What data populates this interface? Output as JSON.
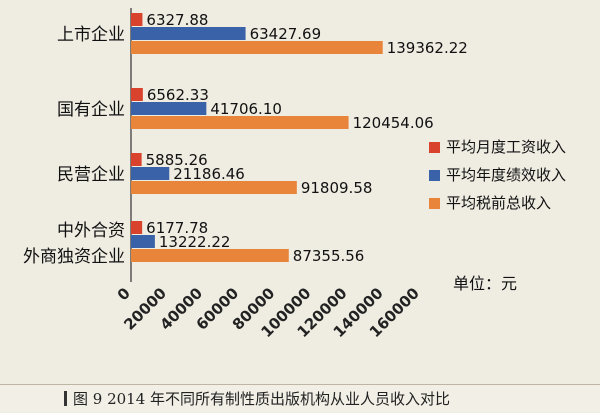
{
  "chart_data": {
    "type": "bar",
    "orientation": "horizontal",
    "categories": [
      "上市企业",
      "国有企业",
      "民营企业",
      "中外合资\n外商独资企业"
    ],
    "series": [
      {
        "name": "平均月度工资收入",
        "color": "#d9432e",
        "values": [
          6327.88,
          6562.33,
          5885.26,
          6177.78
        ]
      },
      {
        "name": "平均年度绩效收入",
        "color": "#3a62a8",
        "values": [
          63427.69,
          41706.1,
          21186.46,
          13222.22
        ]
      },
      {
        "name": "平均税前总收入",
        "color": "#e8853a",
        "values": [
          139362.22,
          120454.06,
          91809.58,
          87355.56
        ]
      }
    ],
    "value_labels": [
      [
        "6327.88",
        "63427.69",
        "139362.22"
      ],
      [
        "6562.33",
        "41706.10",
        "120454.06"
      ],
      [
        "5885.26",
        "21186.46",
        "91809.58"
      ],
      [
        "6177.78",
        "13222.22",
        "87355.56"
      ]
    ],
    "xlim": [
      0,
      160000
    ],
    "xticks": [
      "0",
      "20000",
      "40000",
      "60000",
      "80000",
      "100000",
      "120000",
      "140000",
      "160000"
    ],
    "unit_label": "单位：元",
    "legend_position": "right",
    "grid": false
  },
  "caption": {
    "text": "图 9  2014 年不同所有制性质出版机构从业人员收入对比"
  }
}
